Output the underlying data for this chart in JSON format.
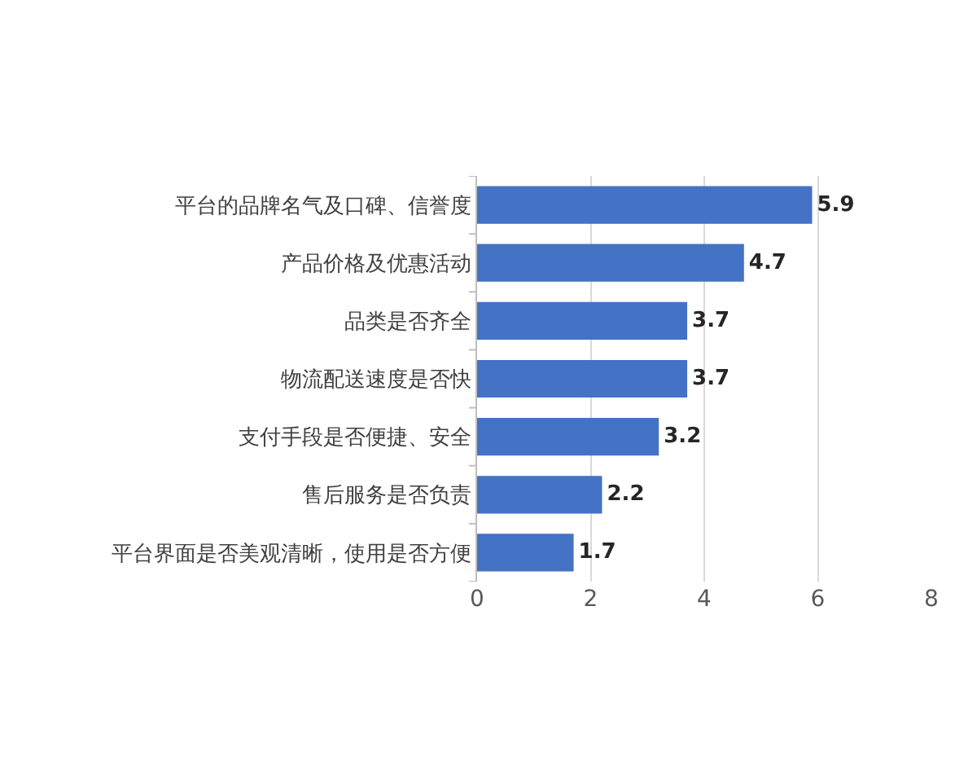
{
  "chart_data": {
    "type": "bar",
    "orientation": "horizontal",
    "categories": [
      "平台的品牌名气及口碑、信誉度",
      "产品价格及优惠活动",
      "品类是否齐全",
      "物流配送速度是否快",
      "支付手段是否便捷、安全",
      "售后服务是否负责",
      "平台界面是否美观清晰，使用是否方便"
    ],
    "values": [
      5.9,
      4.7,
      3.7,
      3.7,
      3.2,
      2.2,
      1.7
    ],
    "color": "#4472c4",
    "xlim": [
      0,
      8
    ],
    "xticks": [
      0,
      2,
      4,
      6,
      8
    ],
    "grid": "x",
    "data_labels": true,
    "legend": false
  }
}
